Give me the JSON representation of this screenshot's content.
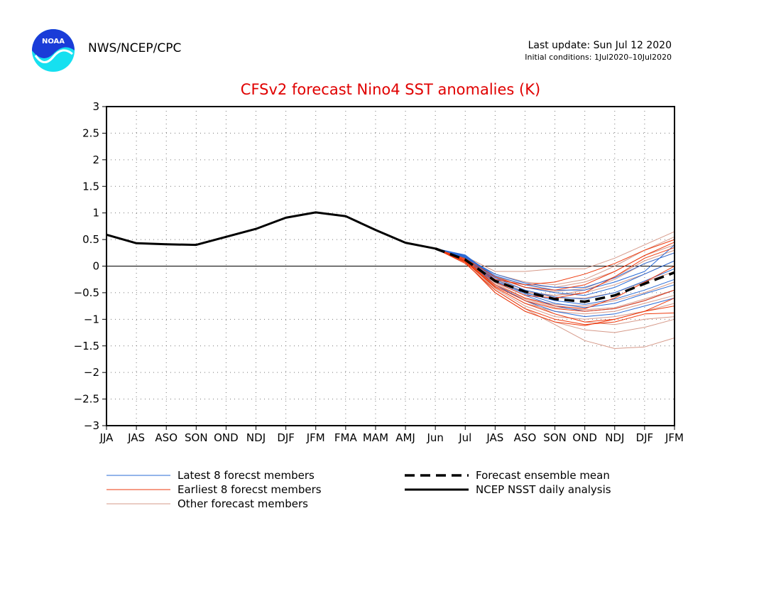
{
  "header": {
    "organization": "NWS/NCEP/CPC",
    "last_update": "Last update: Sun Jul 12 2020",
    "initial_conditions": "Initial conditions: 1Jul2020–10Jul2020",
    "logo_text": "NOAA"
  },
  "colors": {
    "title": "#e00000",
    "latest": "#2a6bd6",
    "earliest": "#ee3a0e",
    "other": "#d69a8a",
    "observed": "#000000",
    "zero_line": "#000000"
  },
  "chart_data": {
    "type": "line",
    "title": "CFSv2 forecast Nino4 SST anomalies (K)",
    "ylim": [
      -3,
      3
    ],
    "yticks": [
      3,
      2.5,
      2,
      1.5,
      1,
      0.5,
      0,
      -0.5,
      -1,
      -1.5,
      -2,
      -2.5,
      -3
    ],
    "ytick_labels": [
      "3",
      "2.5",
      "2",
      "1.5",
      "1",
      "0.5",
      "0",
      "−0.5",
      "−1",
      "−1.5",
      "−2",
      "−2.5",
      "−3"
    ],
    "categories": [
      "JJA",
      "JAS",
      "ASO",
      "SON",
      "OND",
      "NDJ",
      "DJF",
      "JFM",
      "FMA",
      "MAM",
      "AMJ",
      "Jun",
      "Jul",
      "JAS",
      "ASO",
      "SON",
      "OND",
      "NDJ",
      "DJF",
      "JFM"
    ],
    "grid": true,
    "observed": {
      "name": "NCEP NSST daily analysis",
      "x": [
        0,
        1,
        2,
        3,
        4,
        5,
        6,
        7,
        8,
        9,
        10,
        11
      ],
      "y": [
        0.59,
        0.43,
        0.41,
        0.4,
        0.55,
        0.7,
        0.91,
        1.01,
        0.94,
        0.68,
        0.44,
        0.33
      ]
    },
    "ensemble_mean": {
      "name": "Forecast ensemble mean",
      "x": [
        11,
        12,
        13,
        14,
        15,
        16,
        17,
        18,
        19
      ],
      "y": [
        0.33,
        0.12,
        -0.28,
        -0.48,
        -0.62,
        -0.67,
        -0.55,
        -0.33,
        -0.12
      ]
    },
    "latest_members": {
      "name": "Latest 8 forecst members",
      "x": [
        11,
        12,
        13,
        14,
        15,
        16,
        17,
        18,
        19
      ],
      "series": [
        [
          0.33,
          0.18,
          -0.2,
          -0.4,
          -0.5,
          -0.55,
          -0.4,
          -0.15,
          0.1
        ],
        [
          0.33,
          0.2,
          -0.25,
          -0.5,
          -0.65,
          -0.72,
          -0.62,
          -0.45,
          -0.25
        ],
        [
          0.33,
          0.16,
          -0.15,
          -0.32,
          -0.4,
          -0.4,
          -0.22,
          0.05,
          0.25
        ],
        [
          0.33,
          0.17,
          -0.3,
          -0.55,
          -0.75,
          -0.85,
          -0.8,
          -0.65,
          -0.45
        ],
        [
          0.33,
          0.21,
          -0.22,
          -0.45,
          -0.58,
          -0.62,
          -0.5,
          -0.28,
          -0.05
        ],
        [
          0.33,
          0.15,
          -0.35,
          -0.65,
          -0.85,
          -0.95,
          -0.9,
          -0.75,
          -0.6
        ],
        [
          0.33,
          0.19,
          -0.18,
          -0.35,
          -0.45,
          -0.45,
          -0.3,
          -0.1,
          0.4
        ],
        [
          0.33,
          0.18,
          -0.28,
          -0.52,
          -0.7,
          -0.78,
          -0.7,
          -0.52,
          -0.35
        ]
      ]
    },
    "earliest_members": {
      "name": "Earliest 8 forecst members",
      "x": [
        11,
        12,
        13,
        14,
        15,
        16,
        17,
        18,
        19
      ],
      "series": [
        [
          0.33,
          0.1,
          -0.3,
          -0.55,
          -0.6,
          -0.5,
          -0.2,
          0.15,
          0.35
        ],
        [
          0.33,
          0.08,
          -0.4,
          -0.7,
          -0.9,
          -1.05,
          -1.0,
          -0.85,
          -0.6
        ],
        [
          0.33,
          0.12,
          -0.25,
          -0.35,
          -0.3,
          -0.15,
          0.05,
          0.3,
          0.5
        ],
        [
          0.33,
          0.05,
          -0.45,
          -0.8,
          -1.0,
          -1.1,
          -1.05,
          -0.9,
          -0.88
        ],
        [
          0.33,
          0.1,
          -0.35,
          -0.6,
          -0.75,
          -0.8,
          -0.6,
          -0.3,
          0.0
        ],
        [
          0.33,
          0.07,
          -0.5,
          -0.85,
          -1.05,
          -1.12,
          -1.0,
          -0.85,
          -0.75
        ],
        [
          0.33,
          0.14,
          -0.2,
          -0.4,
          -0.45,
          -0.35,
          -0.1,
          0.2,
          0.45
        ],
        [
          0.33,
          0.09,
          -0.38,
          -0.65,
          -0.8,
          -0.85,
          -0.8,
          -0.65,
          -0.45
        ]
      ]
    },
    "other_members": {
      "name": "Other forecast members",
      "x": [
        11,
        12,
        13,
        14,
        15,
        16,
        17,
        18,
        19
      ],
      "series": [
        [
          0.33,
          0.12,
          -0.45,
          -0.8,
          -1.1,
          -1.4,
          -1.55,
          -1.52,
          -1.35
        ],
        [
          0.33,
          0.15,
          -0.3,
          -0.5,
          -0.55,
          -0.45,
          -0.25,
          0.05,
          0.25
        ],
        [
          0.33,
          0.1,
          -0.4,
          -0.7,
          -0.85,
          -0.9,
          -0.85,
          -0.7,
          -0.55
        ],
        [
          0.33,
          0.18,
          -0.1,
          -0.1,
          -0.05,
          -0.05,
          0.15,
          0.4,
          0.65
        ],
        [
          0.33,
          0.13,
          -0.35,
          -0.65,
          -0.9,
          -1.05,
          -1.1,
          -1.0,
          -0.95
        ],
        [
          0.33,
          0.14,
          -0.25,
          -0.45,
          -0.6,
          -0.6,
          -0.5,
          -0.3,
          -0.1
        ],
        [
          0.33,
          0.11,
          -0.5,
          -0.85,
          -1.05,
          -1.2,
          -1.25,
          -1.15,
          -1.0
        ],
        [
          0.33,
          0.16,
          -0.2,
          -0.35,
          -0.4,
          -0.3,
          -0.1,
          0.2,
          0.4
        ],
        [
          0.33,
          0.12,
          -0.32,
          -0.6,
          -0.72,
          -0.75,
          -0.65,
          -0.5,
          -0.3
        ],
        [
          0.33,
          0.17,
          -0.15,
          -0.3,
          -0.35,
          -0.25,
          0.0,
          0.3,
          0.55
        ],
        [
          0.33,
          0.1,
          -0.42,
          -0.75,
          -0.95,
          -1.0,
          -0.95,
          -0.85,
          -0.7
        ],
        [
          0.33,
          0.15,
          -0.28,
          -0.48,
          -0.55,
          -0.5,
          -0.35,
          -0.15,
          0.1
        ],
        [
          0.33,
          0.13,
          -0.38,
          -0.62,
          -0.78,
          -0.82,
          -0.78,
          -0.62,
          -0.45
        ],
        [
          0.33,
          0.14,
          -0.22,
          -0.4,
          -0.48,
          -0.42,
          -0.2,
          0.1,
          0.3
        ]
      ]
    },
    "legend": {
      "placement": "bottom",
      "entries": [
        {
          "label": "Latest 8 forecst members",
          "style": "latest"
        },
        {
          "label": "Earliest 8 forecst members",
          "style": "earliest"
        },
        {
          "label": "Other forecast members",
          "style": "other"
        },
        {
          "label": "Forecast ensemble mean",
          "style": "mean"
        },
        {
          "label": "NCEP NSST daily analysis",
          "style": "observed"
        }
      ]
    }
  }
}
